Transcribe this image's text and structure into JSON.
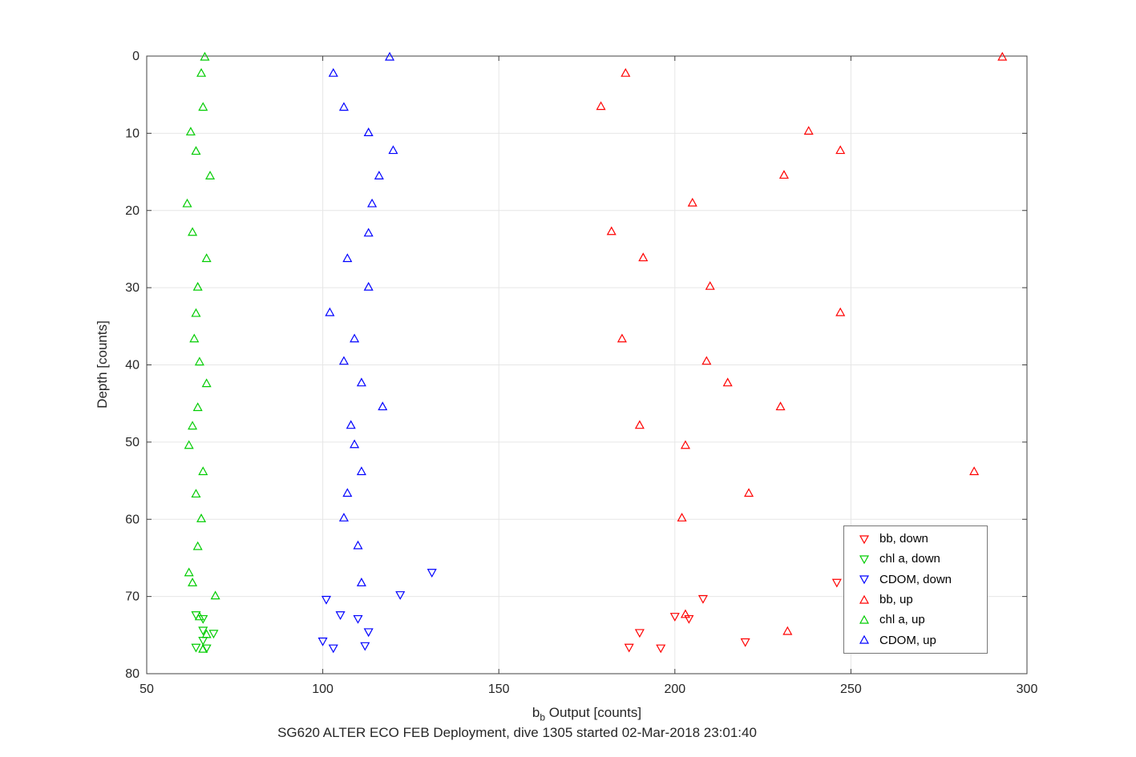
{
  "figure": {
    "title": "SG620 ALTER ECO FEB Deployment, dive 1305 started 02-Mar-2018 23:01:40",
    "ylabel": "Depth [counts]",
    "xlabel": {
      "base": "b",
      "sub": "b",
      "rest": " Output [counts]"
    },
    "background": "#ffffff",
    "axes_color": "#404040",
    "grid_color": "#e6e6e6"
  },
  "chart_data": {
    "type": "scatter",
    "title": "SG620 ALTER ECO FEB Deployment, dive 1305 started 02-Mar-2018 23:01:40",
    "xlabel": "b_b Output [counts]",
    "ylabel": "Depth [counts]",
    "xlim": [
      50,
      300
    ],
    "ylim": [
      0,
      80
    ],
    "y_inverted": true,
    "xticks": [
      50,
      100,
      150,
      200,
      250,
      300
    ],
    "yticks": [
      0,
      10,
      20,
      30,
      40,
      50,
      60,
      70,
      80
    ],
    "grid": true,
    "legend_position": "lower-right-inside",
    "series": [
      {
        "name": "bb, down",
        "color": "#ff0000",
        "marker": "triangle-down",
        "points": [
          [
            246,
            68.2
          ],
          [
            208,
            70.3
          ],
          [
            200,
            72.6
          ],
          [
            204,
            72.9
          ],
          [
            190,
            74.7
          ],
          [
            220,
            75.9
          ],
          [
            187,
            76.6
          ],
          [
            196,
            76.7
          ]
        ]
      },
      {
        "name": "chl a, down",
        "color": "#00cc00",
        "marker": "triangle-down",
        "points": [
          [
            64,
            72.4
          ],
          [
            66,
            72.9
          ],
          [
            66,
            74.4
          ],
          [
            69,
            74.8
          ],
          [
            66,
            75.7
          ],
          [
            64,
            76.6
          ],
          [
            67,
            76.7
          ]
        ]
      },
      {
        "name": "CDOM, down",
        "color": "#0000ff",
        "marker": "triangle-down",
        "points": [
          [
            131,
            66.9
          ],
          [
            122,
            69.8
          ],
          [
            101,
            70.4
          ],
          [
            105,
            72.4
          ],
          [
            110,
            72.9
          ],
          [
            113,
            74.6
          ],
          [
            100,
            75.8
          ],
          [
            112,
            76.4
          ],
          [
            103,
            76.7
          ]
        ]
      },
      {
        "name": "bb, up",
        "color": "#ff0000",
        "marker": "triangle-up",
        "points": [
          [
            293,
            0.1
          ],
          [
            186,
            2.2
          ],
          [
            179,
            6.5
          ],
          [
            238,
            9.7
          ],
          [
            247,
            12.2
          ],
          [
            231,
            15.4
          ],
          [
            205,
            19.0
          ],
          [
            182,
            22.7
          ],
          [
            191,
            26.1
          ],
          [
            210,
            29.8
          ],
          [
            247,
            33.2
          ],
          [
            185,
            36.6
          ],
          [
            209,
            39.5
          ],
          [
            215,
            42.3
          ],
          [
            230,
            45.4
          ],
          [
            190,
            47.8
          ],
          [
            203,
            50.4
          ],
          [
            285,
            53.8
          ],
          [
            221,
            56.6
          ],
          [
            202,
            59.8
          ],
          [
            203,
            72.3
          ],
          [
            232,
            74.5
          ]
        ]
      },
      {
        "name": "chl a, up",
        "color": "#00cc00",
        "marker": "triangle-up",
        "points": [
          [
            66.5,
            0.1
          ],
          [
            65.5,
            2.2
          ],
          [
            66,
            6.6
          ],
          [
            62.5,
            9.8
          ],
          [
            64,
            12.3
          ],
          [
            68,
            15.5
          ],
          [
            61.5,
            19.1
          ],
          [
            63,
            22.8
          ],
          [
            67,
            26.2
          ],
          [
            64.5,
            29.9
          ],
          [
            64,
            33.3
          ],
          [
            63.5,
            36.6
          ],
          [
            65,
            39.6
          ],
          [
            67,
            42.4
          ],
          [
            64.5,
            45.5
          ],
          [
            63,
            47.9
          ],
          [
            62,
            50.4
          ],
          [
            66,
            53.8
          ],
          [
            64,
            56.7
          ],
          [
            65.5,
            59.9
          ],
          [
            64.5,
            63.5
          ],
          [
            62,
            66.9
          ],
          [
            63,
            68.2
          ],
          [
            69.5,
            69.9
          ],
          [
            65,
            72.6
          ],
          [
            67,
            74.9
          ],
          [
            66,
            76.8
          ]
        ]
      },
      {
        "name": "CDOM, up",
        "color": "#0000ff",
        "marker": "triangle-up",
        "points": [
          [
            119,
            0.1
          ],
          [
            103,
            2.2
          ],
          [
            106,
            6.6
          ],
          [
            113,
            9.9
          ],
          [
            120,
            12.2
          ],
          [
            116,
            15.5
          ],
          [
            114,
            19.1
          ],
          [
            113,
            22.9
          ],
          [
            107,
            26.2
          ],
          [
            113,
            29.9
          ],
          [
            102,
            33.2
          ],
          [
            109,
            36.6
          ],
          [
            106,
            39.5
          ],
          [
            111,
            42.3
          ],
          [
            117,
            45.4
          ],
          [
            108,
            47.8
          ],
          [
            109,
            50.3
          ],
          [
            111,
            53.8
          ],
          [
            107,
            56.6
          ],
          [
            106,
            59.8
          ],
          [
            110,
            63.4
          ],
          [
            111,
            68.2
          ]
        ]
      }
    ]
  }
}
